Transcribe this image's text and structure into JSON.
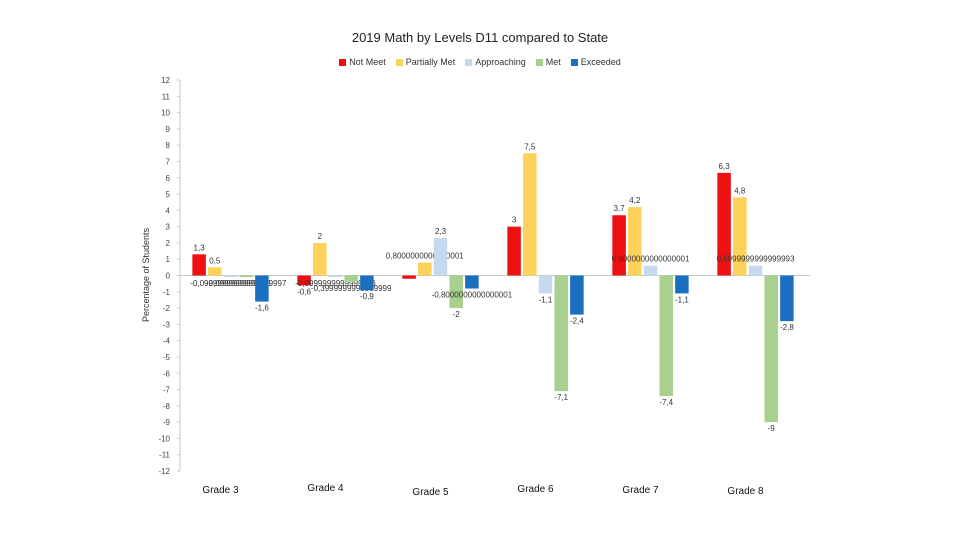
{
  "chart_data": {
    "type": "bar",
    "title": "2019 Math by Levels D11 compared to State",
    "xlabel": "",
    "ylabel": "Percentage of Students",
    "ylim": [
      -12,
      12
    ],
    "ytick_step": 1,
    "legend_position": "top",
    "grid": false,
    "categories": [
      "Grade 3",
      "Grade 4",
      "Grade 5",
      "Grade 6",
      "Grade 7",
      "Grade 8"
    ],
    "series": [
      {
        "name": "Not Meet",
        "color": "#ee1111",
        "values": [
          1.3,
          -0.6,
          -0.2,
          3,
          3.7,
          6.3
        ],
        "labels": [
          "1,3",
          "-0,6",
          "",
          "3",
          "3,7",
          "6,3"
        ]
      },
      {
        "name": "Partially Met",
        "color": "#fcd25a",
        "values": [
          0.5,
          2,
          0.8,
          7.5,
          4.2,
          4.8
        ],
        "labels": [
          "0,5",
          "2",
          "0,8000000000000001",
          "7,5",
          "4,2",
          "4,8"
        ]
      },
      {
        "name": "Approaching",
        "color": "#c5d9ef",
        "values": [
          -0.1,
          -0.1,
          2.3,
          -1.1,
          0.6,
          0.6
        ],
        "labels": [
          "-0,0999999999999996",
          "-0,0999999999999996",
          "2,3",
          "-1,1",
          "0,6000000000000001",
          "0,5999999999999993"
        ]
      },
      {
        "name": "Met",
        "color": "#a9d08e",
        "values": [
          -0.1,
          -0.4,
          -2,
          -7.1,
          -7.4,
          -9
        ],
        "labels": [
          "-0,0999999999999997",
          "-0,3999999999999999",
          "-2",
          "-7,1",
          "-7,4",
          "-9"
        ]
      },
      {
        "name": "Exceeded",
        "color": "#1a6fbf",
        "values": [
          -1.6,
          -0.9,
          -0.8,
          -2.4,
          -1.1,
          -2.8
        ],
        "labels": [
          "-1,6",
          "-0,9",
          "-0,8000000000000001",
          "-2,4",
          "-1,1",
          "-2,8"
        ]
      }
    ]
  }
}
